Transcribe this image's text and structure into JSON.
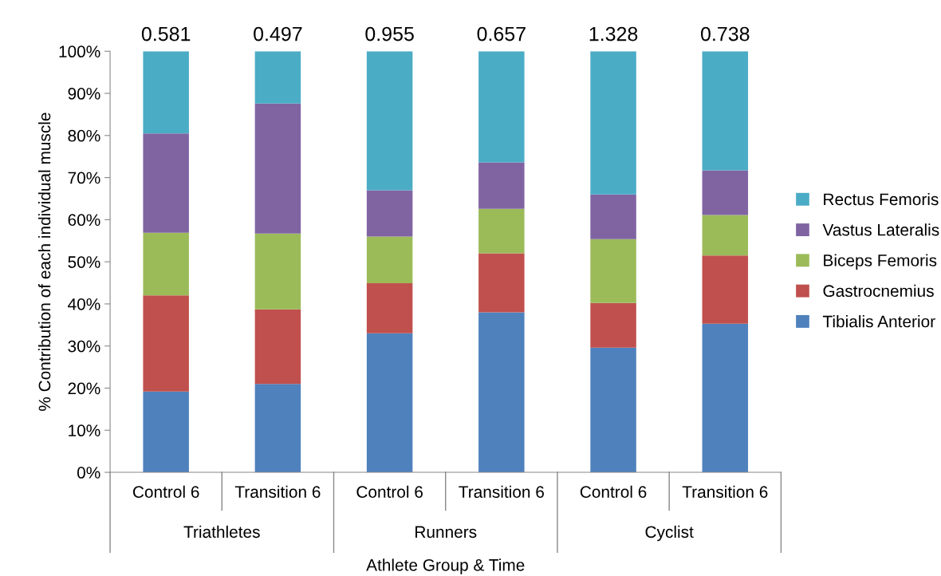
{
  "chart_data": {
    "type": "bar",
    "stacked": true,
    "xlabel": "Athlete Group & Time",
    "ylabel": "% Contribution of each individual muscle",
    "categories": [
      "Control 6",
      "Transition 6",
      "Control 6",
      "Transition 6",
      "Control 6",
      "Transition 6"
    ],
    "series": [
      {
        "name": "Tibialis Anterior",
        "color": "#4f81bd",
        "values": [
          19.2,
          21.0,
          33.0,
          38.0,
          29.6,
          35.3
        ]
      },
      {
        "name": "Gastrocnemius",
        "color": "#c0504d",
        "values": [
          22.8,
          17.7,
          11.9,
          14.0,
          10.6,
          16.2
        ]
      },
      {
        "name": "Biceps Femoris",
        "color": "#9bbb59",
        "values": [
          14.9,
          18.0,
          11.1,
          10.6,
          15.2,
          9.6
        ]
      },
      {
        "name": "Vastus Lateralis",
        "color": "#8064a2",
        "values": [
          23.6,
          30.9,
          11.0,
          11.0,
          10.6,
          10.6
        ]
      },
      {
        "name": "Rectus Femoris",
        "color": "#4bacc6",
        "values": [
          19.5,
          12.4,
          33.0,
          26.4,
          34.0,
          28.3
        ]
      }
    ],
    "ylim": [
      0,
      100
    ],
    "yticks": [
      {
        "value": 0,
        "label": "0%"
      },
      {
        "value": 10,
        "label": "10%"
      },
      {
        "value": 20,
        "label": "20%"
      },
      {
        "value": 30,
        "label": "30%"
      },
      {
        "value": 40,
        "label": "40%"
      },
      {
        "value": 50,
        "label": "50%"
      },
      {
        "value": 60,
        "label": "60%"
      },
      {
        "value": 70,
        "label": "70%"
      },
      {
        "value": 80,
        "label": "80%"
      },
      {
        "value": 90,
        "label": "90%"
      },
      {
        "value": 100,
        "label": "100%"
      }
    ],
    "annotations": [
      "0.581",
      "0.497",
      "0.955",
      "0.657",
      "1.328",
      "0.738",
      "Triathletes",
      "Runners",
      "Cyclist"
    ],
    "legend": "right",
    "grid": false
  }
}
